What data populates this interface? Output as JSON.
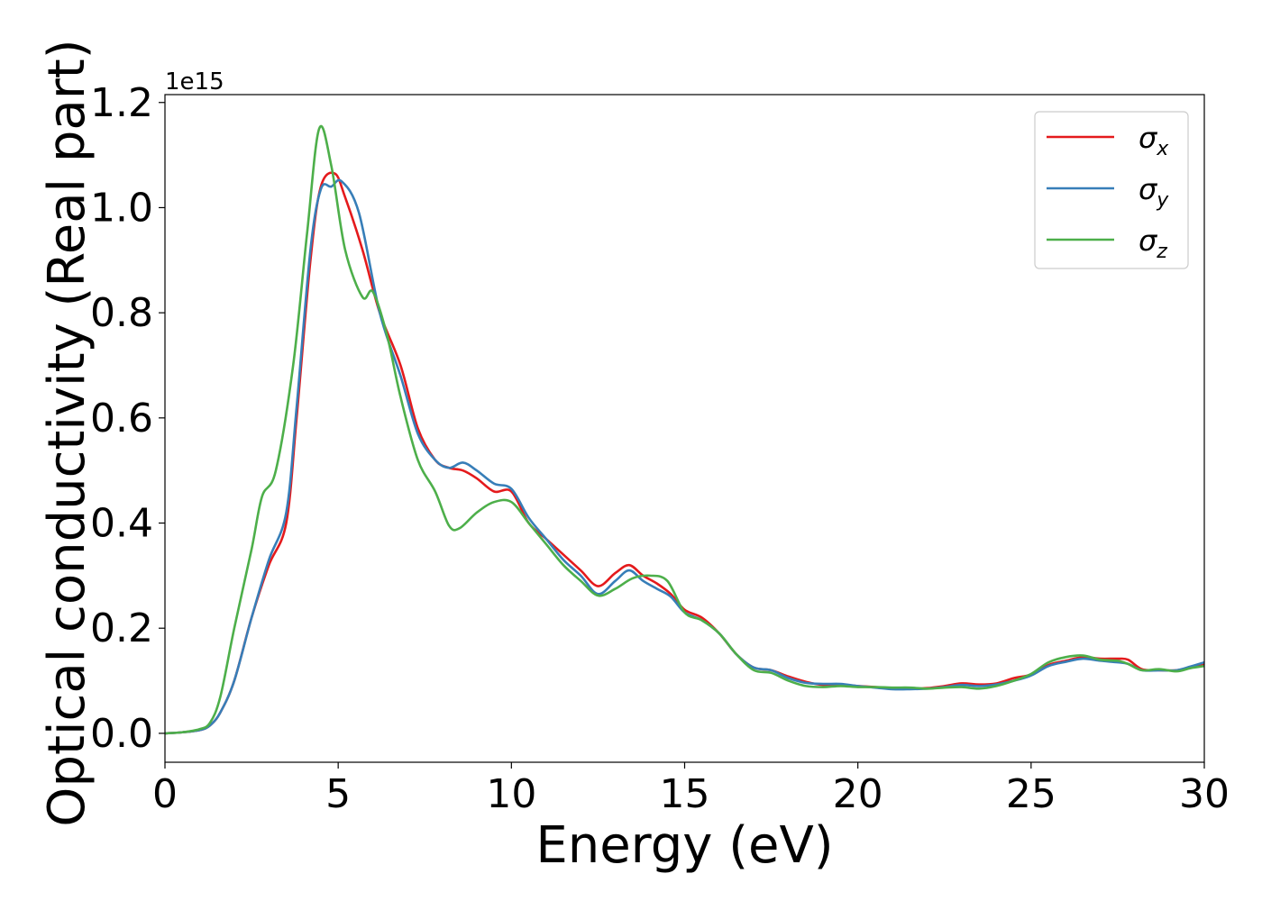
{
  "chart_data": {
    "type": "line",
    "xlabel": "Energy (eV)",
    "ylabel": "Optical conductivity (Real part)",
    "y_offset_label": "1e15",
    "xlim": [
      0,
      30
    ],
    "ylim": [
      -0.055,
      1.215
    ],
    "x_ticks": [
      0,
      5,
      10,
      15,
      20,
      25,
      30
    ],
    "x_tick_labels": [
      "0",
      "5",
      "10",
      "15",
      "20",
      "25",
      "30"
    ],
    "y_ticks": [
      0.0,
      0.2,
      0.4,
      0.6,
      0.8,
      1.0,
      1.2
    ],
    "y_tick_labels": [
      "0.0",
      "0.2",
      "0.4",
      "0.6",
      "0.8",
      "1.0",
      "1.2"
    ],
    "grid": false,
    "legend_position": "top-right",
    "series": [
      {
        "name": "σ",
        "subscript": "x",
        "color": "#e41a1c",
        "points": [
          [
            0,
            0
          ],
          [
            0.5,
            0.002
          ],
          [
            1,
            0.006
          ],
          [
            1.3,
            0.015
          ],
          [
            1.6,
            0.04
          ],
          [
            2,
            0.1
          ],
          [
            2.5,
            0.22
          ],
          [
            3,
            0.32
          ],
          [
            3.5,
            0.4
          ],
          [
            3.8,
            0.6
          ],
          [
            4.2,
            0.9
          ],
          [
            4.5,
            1.04
          ],
          [
            4.9,
            1.065
          ],
          [
            5.2,
            1.02
          ],
          [
            5.7,
            0.92
          ],
          [
            6.2,
            0.8
          ],
          [
            6.8,
            0.7
          ],
          [
            7.3,
            0.58
          ],
          [
            7.8,
            0.52
          ],
          [
            8.2,
            0.505
          ],
          [
            8.6,
            0.5
          ],
          [
            9,
            0.485
          ],
          [
            9.5,
            0.46
          ],
          [
            10,
            0.46
          ],
          [
            10.5,
            0.4
          ],
          [
            11,
            0.37
          ],
          [
            11.5,
            0.34
          ],
          [
            12,
            0.31
          ],
          [
            12.5,
            0.28
          ],
          [
            13,
            0.305
          ],
          [
            13.4,
            0.32
          ],
          [
            13.8,
            0.3
          ],
          [
            14.2,
            0.285
          ],
          [
            14.6,
            0.265
          ],
          [
            15,
            0.235
          ],
          [
            15.5,
            0.22
          ],
          [
            16,
            0.19
          ],
          [
            16.5,
            0.15
          ],
          [
            17,
            0.125
          ],
          [
            17.5,
            0.12
          ],
          [
            18,
            0.108
          ],
          [
            18.5,
            0.098
          ],
          [
            19,
            0.092
          ],
          [
            19.5,
            0.092
          ],
          [
            20,
            0.09
          ],
          [
            20.5,
            0.088
          ],
          [
            21,
            0.086
          ],
          [
            21.5,
            0.085
          ],
          [
            22,
            0.086
          ],
          [
            22.5,
            0.09
          ],
          [
            23,
            0.095
          ],
          [
            23.5,
            0.093
          ],
          [
            24,
            0.095
          ],
          [
            24.5,
            0.105
          ],
          [
            25,
            0.112
          ],
          [
            25.5,
            0.13
          ],
          [
            26,
            0.138
          ],
          [
            26.5,
            0.145
          ],
          [
            27,
            0.142
          ],
          [
            27.5,
            0.142
          ],
          [
            27.8,
            0.14
          ],
          [
            28.2,
            0.122
          ],
          [
            28.7,
            0.12
          ],
          [
            29.2,
            0.12
          ],
          [
            29.6,
            0.125
          ],
          [
            30,
            0.132
          ]
        ]
      },
      {
        "name": "σ",
        "subscript": "y",
        "color": "#377eb8",
        "points": [
          [
            0,
            0
          ],
          [
            0.5,
            0.002
          ],
          [
            1,
            0.006
          ],
          [
            1.3,
            0.015
          ],
          [
            1.6,
            0.04
          ],
          [
            2,
            0.1
          ],
          [
            2.5,
            0.22
          ],
          [
            3,
            0.33
          ],
          [
            3.5,
            0.42
          ],
          [
            3.8,
            0.62
          ],
          [
            4.2,
            0.92
          ],
          [
            4.5,
            1.035
          ],
          [
            4.8,
            1.04
          ],
          [
            5.1,
            1.05
          ],
          [
            5.6,
            0.99
          ],
          [
            6.2,
            0.8
          ],
          [
            6.8,
            0.68
          ],
          [
            7.3,
            0.57
          ],
          [
            7.8,
            0.52
          ],
          [
            8.2,
            0.505
          ],
          [
            8.6,
            0.515
          ],
          [
            9,
            0.5
          ],
          [
            9.5,
            0.475
          ],
          [
            10,
            0.465
          ],
          [
            10.5,
            0.41
          ],
          [
            11,
            0.37
          ],
          [
            11.5,
            0.33
          ],
          [
            12,
            0.3
          ],
          [
            12.5,
            0.265
          ],
          [
            13,
            0.29
          ],
          [
            13.4,
            0.31
          ],
          [
            13.8,
            0.29
          ],
          [
            14.2,
            0.275
          ],
          [
            14.6,
            0.26
          ],
          [
            15,
            0.23
          ],
          [
            15.5,
            0.215
          ],
          [
            16,
            0.19
          ],
          [
            16.5,
            0.15
          ],
          [
            17,
            0.125
          ],
          [
            17.5,
            0.12
          ],
          [
            18,
            0.105
          ],
          [
            18.5,
            0.096
          ],
          [
            19,
            0.094
          ],
          [
            19.5,
            0.094
          ],
          [
            20,
            0.09
          ],
          [
            20.5,
            0.087
          ],
          [
            21,
            0.084
          ],
          [
            21.5,
            0.084
          ],
          [
            22,
            0.085
          ],
          [
            22.5,
            0.088
          ],
          [
            23,
            0.092
          ],
          [
            23.5,
            0.09
          ],
          [
            24,
            0.093
          ],
          [
            24.5,
            0.1
          ],
          [
            25,
            0.11
          ],
          [
            25.5,
            0.128
          ],
          [
            26,
            0.136
          ],
          [
            26.5,
            0.142
          ],
          [
            27,
            0.138
          ],
          [
            27.5,
            0.135
          ],
          [
            27.8,
            0.132
          ],
          [
            28.2,
            0.12
          ],
          [
            28.7,
            0.12
          ],
          [
            29.2,
            0.12
          ],
          [
            29.6,
            0.127
          ],
          [
            30,
            0.135
          ]
        ]
      },
      {
        "name": "σ",
        "subscript": "z",
        "color": "#4daf4a",
        "points": [
          [
            0,
            0
          ],
          [
            0.5,
            0.002
          ],
          [
            1,
            0.008
          ],
          [
            1.3,
            0.02
          ],
          [
            1.6,
            0.07
          ],
          [
            2,
            0.2
          ],
          [
            2.5,
            0.35
          ],
          [
            2.8,
            0.45
          ],
          [
            3.2,
            0.5
          ],
          [
            3.7,
            0.7
          ],
          [
            4.1,
            0.95
          ],
          [
            4.45,
            1.15
          ],
          [
            4.8,
            1.08
          ],
          [
            5.2,
            0.92
          ],
          [
            5.7,
            0.83
          ],
          [
            6,
            0.84
          ],
          [
            6.4,
            0.76
          ],
          [
            6.8,
            0.64
          ],
          [
            7.3,
            0.52
          ],
          [
            7.8,
            0.46
          ],
          [
            8.2,
            0.395
          ],
          [
            8.5,
            0.39
          ],
          [
            9,
            0.42
          ],
          [
            9.5,
            0.44
          ],
          [
            10,
            0.44
          ],
          [
            10.5,
            0.4
          ],
          [
            11,
            0.36
          ],
          [
            11.5,
            0.32
          ],
          [
            12,
            0.29
          ],
          [
            12.5,
            0.262
          ],
          [
            13,
            0.275
          ],
          [
            13.5,
            0.295
          ],
          [
            14,
            0.3
          ],
          [
            14.5,
            0.29
          ],
          [
            15,
            0.23
          ],
          [
            15.5,
            0.215
          ],
          [
            16,
            0.19
          ],
          [
            16.5,
            0.15
          ],
          [
            17,
            0.12
          ],
          [
            17.5,
            0.115
          ],
          [
            18,
            0.1
          ],
          [
            18.5,
            0.09
          ],
          [
            19,
            0.088
          ],
          [
            19.5,
            0.09
          ],
          [
            20,
            0.088
          ],
          [
            20.5,
            0.088
          ],
          [
            21,
            0.087
          ],
          [
            21.5,
            0.087
          ],
          [
            22,
            0.085
          ],
          [
            22.5,
            0.087
          ],
          [
            23,
            0.088
          ],
          [
            23.5,
            0.085
          ],
          [
            24,
            0.09
          ],
          [
            24.5,
            0.1
          ],
          [
            25,
            0.113
          ],
          [
            25.5,
            0.135
          ],
          [
            26,
            0.145
          ],
          [
            26.5,
            0.148
          ],
          [
            27,
            0.14
          ],
          [
            27.5,
            0.138
          ],
          [
            27.8,
            0.132
          ],
          [
            28.2,
            0.12
          ],
          [
            28.7,
            0.122
          ],
          [
            29.2,
            0.118
          ],
          [
            29.6,
            0.124
          ],
          [
            30,
            0.128
          ]
        ]
      }
    ]
  }
}
